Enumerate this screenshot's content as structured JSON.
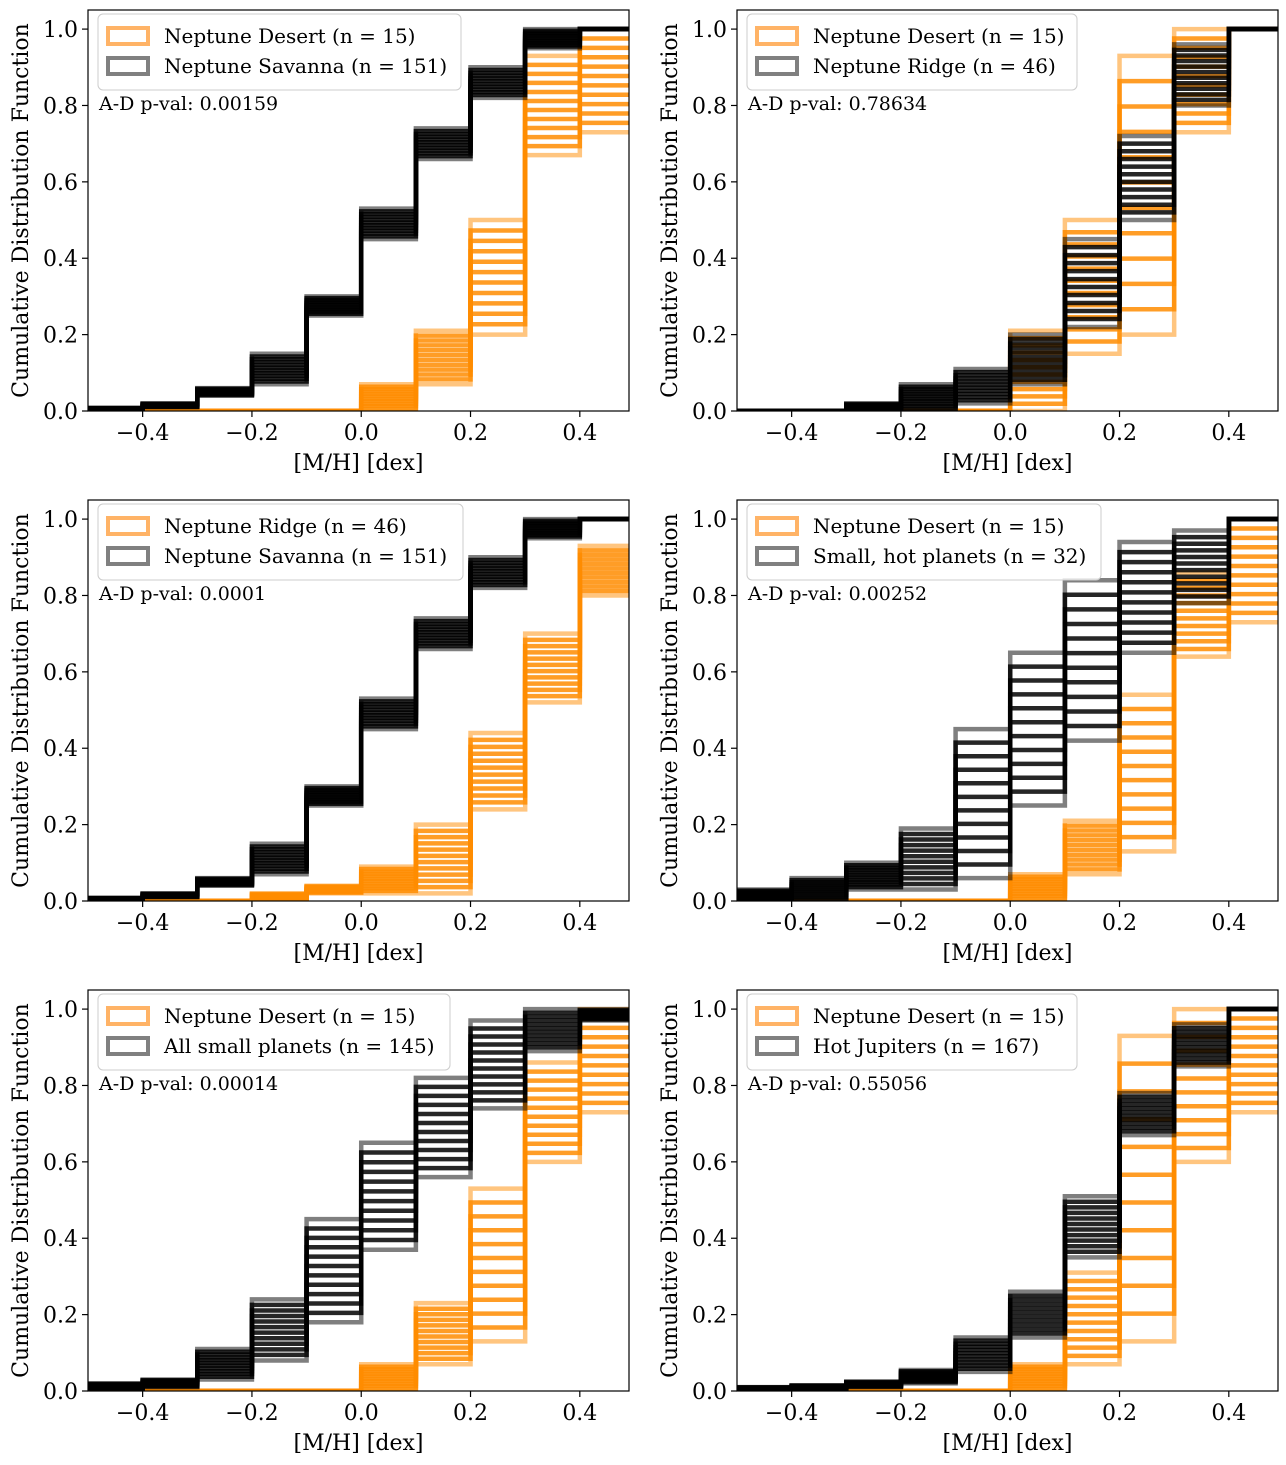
{
  "chart_data": [
    {
      "type": "line",
      "drawstyle": "step-cdf",
      "xlabel": "[M/H] [dex]",
      "ylabel": "Cumulative Distribution Function",
      "xlim": [
        -0.5,
        0.49
      ],
      "ylim": [
        0,
        1.05
      ],
      "xticks": [
        "−0.4",
        "−0.2",
        "0.0",
        "0.2",
        "0.4"
      ],
      "yticks": [
        "0.0",
        "0.2",
        "0.4",
        "0.6",
        "0.8",
        "1.0"
      ],
      "legend_position": "top-left",
      "annotation": "A-D p-val: 0.00159",
      "series": [
        {
          "name": "Neptune Desert (n = 15)",
          "color": "#ff8c00",
          "x": [
            -0.5,
            -0.4,
            -0.3,
            -0.2,
            -0.1,
            0.0,
            0.1,
            0.2,
            0.3,
            0.4,
            0.49
          ],
          "lo": [
            0.0,
            0.0,
            0.0,
            0.0,
            0.0,
            0.0,
            0.07,
            0.2,
            0.67,
            0.73,
            1.0
          ],
          "hi": [
            0.0,
            0.0,
            0.0,
            0.0,
            0.0,
            0.07,
            0.21,
            0.5,
            0.93,
            1.0,
            1.0
          ]
        },
        {
          "name": "Neptune Savanna (n = 151)",
          "color": "#000000",
          "x": [
            -0.5,
            -0.4,
            -0.3,
            -0.2,
            -0.1,
            0.0,
            0.1,
            0.2,
            0.3,
            0.4,
            0.49
          ],
          "lo": [
            0.005,
            0.01,
            0.04,
            0.07,
            0.25,
            0.45,
            0.66,
            0.82,
            0.95,
            1.0,
            1.0
          ],
          "hi": [
            0.008,
            0.02,
            0.06,
            0.15,
            0.3,
            0.53,
            0.74,
            0.9,
            1.0,
            1.0,
            1.0
          ]
        }
      ]
    },
    {
      "type": "line",
      "drawstyle": "step-cdf",
      "xlabel": "[M/H] [dex]",
      "ylabel": "Cumulative Distribution Function",
      "xlim": [
        -0.5,
        0.49
      ],
      "ylim": [
        0,
        1.05
      ],
      "xticks": [
        "−0.4",
        "−0.2",
        "0.0",
        "0.2",
        "0.4"
      ],
      "yticks": [
        "0.0",
        "0.2",
        "0.4",
        "0.6",
        "0.8",
        "1.0"
      ],
      "legend_position": "top-left",
      "annotation": "A-D p-val: 0.78634",
      "series": [
        {
          "name": "Neptune Desert (n = 15)",
          "color": "#ff8c00",
          "x": [
            -0.5,
            -0.4,
            -0.3,
            -0.2,
            -0.1,
            0.0,
            0.1,
            0.2,
            0.3,
            0.4,
            0.49
          ],
          "lo": [
            0.0,
            0.0,
            0.0,
            0.0,
            0.0,
            0.0,
            0.15,
            0.2,
            0.73,
            1.0,
            1.0
          ],
          "hi": [
            0.0,
            0.0,
            0.0,
            0.0,
            0.0,
            0.21,
            0.5,
            0.93,
            1.0,
            1.0,
            1.0
          ]
        },
        {
          "name": "Neptune Ridge (n = 46)",
          "color": "#000000",
          "x": [
            -0.5,
            -0.4,
            -0.3,
            -0.2,
            -0.1,
            0.0,
            0.1,
            0.2,
            0.3,
            0.4,
            0.49
          ],
          "lo": [
            0.0,
            0.0,
            0.0,
            0.0,
            0.02,
            0.07,
            0.22,
            0.5,
            0.8,
            1.0,
            1.0
          ],
          "hi": [
            0.0,
            0.0,
            0.02,
            0.07,
            0.11,
            0.2,
            0.45,
            0.72,
            0.96,
            1.0,
            1.0
          ]
        }
      ]
    },
    {
      "type": "line",
      "drawstyle": "step-cdf",
      "xlabel": "[M/H] [dex]",
      "ylabel": "Cumulative Distribution Function",
      "xlim": [
        -0.5,
        0.49
      ],
      "ylim": [
        0,
        1.05
      ],
      "xticks": [
        "−0.4",
        "−0.2",
        "0.0",
        "0.2",
        "0.4"
      ],
      "yticks": [
        "0.0",
        "0.2",
        "0.4",
        "0.6",
        "0.8",
        "1.0"
      ],
      "legend_position": "top-left",
      "annotation": "A-D p-val: 0.0001",
      "series": [
        {
          "name": "Neptune Ridge (n = 46)",
          "color": "#ff8c00",
          "x": [
            -0.5,
            -0.4,
            -0.3,
            -0.2,
            -0.1,
            0.0,
            0.1,
            0.2,
            0.3,
            0.4,
            0.49
          ],
          "lo": [
            0.0,
            0.0,
            0.0,
            0.0,
            0.02,
            0.02,
            0.02,
            0.24,
            0.52,
            0.8,
            1.0
          ],
          "hi": [
            0.0,
            0.0,
            0.0,
            0.02,
            0.04,
            0.09,
            0.2,
            0.44,
            0.7,
            0.93,
            1.0
          ]
        },
        {
          "name": "Neptune Savanna (n = 151)",
          "color": "#000000",
          "x": [
            -0.5,
            -0.4,
            -0.3,
            -0.2,
            -0.1,
            0.0,
            0.1,
            0.2,
            0.3,
            0.4,
            0.49
          ],
          "lo": [
            0.005,
            0.01,
            0.04,
            0.07,
            0.25,
            0.45,
            0.66,
            0.82,
            0.95,
            1.0,
            1.0
          ],
          "hi": [
            0.008,
            0.02,
            0.06,
            0.15,
            0.3,
            0.53,
            0.74,
            0.9,
            1.0,
            1.0,
            1.0
          ]
        }
      ]
    },
    {
      "type": "line",
      "drawstyle": "step-cdf",
      "xlabel": "[M/H] [dex]",
      "ylabel": "Cumulative Distribution Function",
      "xlim": [
        -0.5,
        0.49
      ],
      "ylim": [
        0,
        1.05
      ],
      "xticks": [
        "−0.4",
        "−0.2",
        "0.0",
        "0.2",
        "0.4"
      ],
      "yticks": [
        "0.0",
        "0.2",
        "0.4",
        "0.6",
        "0.8",
        "1.0"
      ],
      "legend_position": "top-left",
      "annotation": "A-D p-val: 0.00252",
      "series": [
        {
          "name": "Neptune Desert (n = 15)",
          "color": "#ff8c00",
          "x": [
            -0.5,
            -0.4,
            -0.3,
            -0.2,
            -0.1,
            0.0,
            0.1,
            0.2,
            0.3,
            0.4,
            0.49
          ],
          "lo": [
            0.0,
            0.0,
            0.0,
            0.0,
            0.0,
            0.0,
            0.07,
            0.13,
            0.64,
            0.73,
            1.0
          ],
          "hi": [
            0.0,
            0.0,
            0.0,
            0.0,
            0.0,
            0.07,
            0.21,
            0.54,
            0.86,
            1.0,
            1.0
          ]
        },
        {
          "name": "Small, hot planets (n = 32)",
          "color": "#000000",
          "x": [
            -0.5,
            -0.4,
            -0.3,
            -0.2,
            -0.1,
            0.0,
            0.1,
            0.2,
            0.3,
            0.4,
            0.49
          ],
          "lo": [
            0.0,
            0.0,
            0.03,
            0.03,
            0.06,
            0.25,
            0.42,
            0.65,
            0.78,
            1.0,
            1.0
          ],
          "hi": [
            0.03,
            0.06,
            0.1,
            0.19,
            0.45,
            0.65,
            0.84,
            0.94,
            0.97,
            1.0,
            1.0
          ]
        }
      ]
    },
    {
      "type": "line",
      "drawstyle": "step-cdf",
      "xlabel": "[M/H] [dex]",
      "ylabel": "Cumulative Distribution Function",
      "xlim": [
        -0.5,
        0.49
      ],
      "ylim": [
        0,
        1.05
      ],
      "xticks": [
        "−0.4",
        "−0.2",
        "0.0",
        "0.2",
        "0.4"
      ],
      "yticks": [
        "0.0",
        "0.2",
        "0.4",
        "0.6",
        "0.8",
        "1.0"
      ],
      "legend_position": "top-left",
      "annotation": "A-D p-val: 0.00014",
      "series": [
        {
          "name": "Neptune Desert (n = 15)",
          "color": "#ff8c00",
          "x": [
            -0.5,
            -0.4,
            -0.3,
            -0.2,
            -0.1,
            0.0,
            0.1,
            0.2,
            0.3,
            0.4,
            0.49
          ],
          "lo": [
            0.0,
            0.0,
            0.0,
            0.0,
            0.0,
            0.0,
            0.07,
            0.13,
            0.6,
            0.73,
            1.0
          ],
          "hi": [
            0.0,
            0.0,
            0.0,
            0.0,
            0.0,
            0.07,
            0.23,
            0.53,
            0.86,
            1.0,
            1.0
          ]
        },
        {
          "name": "All small planets (n = 145)",
          "color": "#000000",
          "x": [
            -0.5,
            -0.4,
            -0.3,
            -0.2,
            -0.1,
            0.0,
            0.1,
            0.2,
            0.3,
            0.4,
            0.49
          ],
          "lo": [
            0.005,
            0.01,
            0.03,
            0.08,
            0.18,
            0.37,
            0.56,
            0.74,
            0.89,
            0.97,
            1.0
          ],
          "hi": [
            0.02,
            0.03,
            0.11,
            0.24,
            0.45,
            0.65,
            0.82,
            0.97,
            1.0,
            1.0,
            1.0
          ]
        }
      ]
    },
    {
      "type": "line",
      "drawstyle": "step-cdf",
      "xlabel": "[M/H] [dex]",
      "ylabel": "Cumulative Distribution Function",
      "xlim": [
        -0.5,
        0.49
      ],
      "ylim": [
        0,
        1.05
      ],
      "xticks": [
        "−0.4",
        "−0.2",
        "0.0",
        "0.2",
        "0.4"
      ],
      "yticks": [
        "0.0",
        "0.2",
        "0.4",
        "0.6",
        "0.8",
        "1.0"
      ],
      "legend_position": "top-left",
      "annotation": "A-D p-val: 0.55056",
      "series": [
        {
          "name": "Neptune Desert (n = 15)",
          "color": "#ff8c00",
          "x": [
            -0.5,
            -0.4,
            -0.3,
            -0.2,
            -0.1,
            0.0,
            0.1,
            0.2,
            0.3,
            0.4,
            0.49
          ],
          "lo": [
            0.0,
            0.0,
            0.0,
            0.0,
            0.0,
            0.0,
            0.07,
            0.13,
            0.6,
            0.73,
            1.0
          ],
          "hi": [
            0.0,
            0.0,
            0.0,
            0.0,
            0.0,
            0.07,
            0.31,
            0.93,
            1.0,
            1.0,
            1.0
          ]
        },
        {
          "name": "Hot Jupiters (n = 167)",
          "color": "#000000",
          "x": [
            -0.5,
            -0.4,
            -0.3,
            -0.2,
            -0.1,
            0.0,
            0.1,
            0.2,
            0.3,
            0.4,
            0.49
          ],
          "lo": [
            0.005,
            0.005,
            0.01,
            0.02,
            0.05,
            0.14,
            0.35,
            0.67,
            0.85,
            1.0,
            1.0
          ],
          "hi": [
            0.01,
            0.015,
            0.025,
            0.055,
            0.14,
            0.26,
            0.51,
            0.78,
            0.96,
            1.0,
            1.0
          ]
        }
      ]
    }
  ]
}
